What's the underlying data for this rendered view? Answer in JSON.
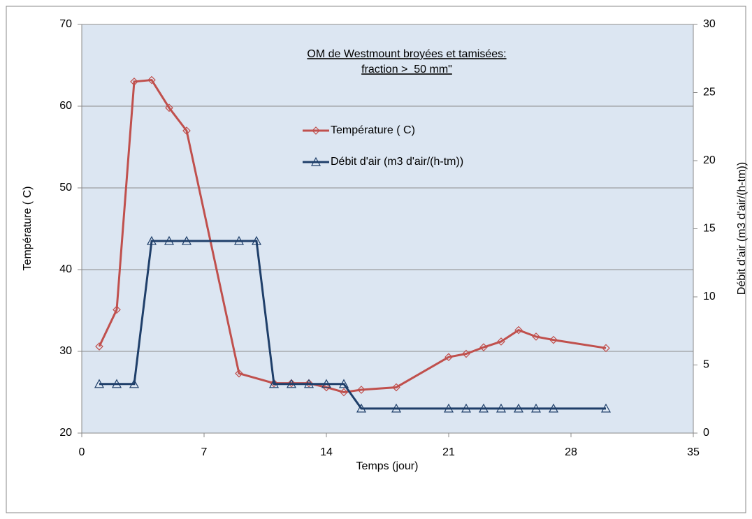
{
  "chart_data": {
    "type": "line",
    "title": "OM de Westmount broyées et tamisées:",
    "subtitle": "fraction >  50 mm\"",
    "x_label": "Temps (jour)",
    "y_label": "Température ( C)",
    "y2_label": "Débit d'air (m3 d'air/(h-tm))",
    "xlim": [
      0,
      35
    ],
    "xticks": [
      0,
      7,
      14,
      21,
      28,
      35
    ],
    "ylim": [
      20,
      70
    ],
    "yticks": [
      20,
      30,
      40,
      50,
      60,
      70
    ],
    "y2lim": [
      0,
      30
    ],
    "y2ticks": [
      0,
      5,
      10,
      15,
      20,
      25,
      30
    ],
    "grid": true,
    "series": [
      {
        "name": "Température ( C)",
        "color": "#c0504d",
        "marker": "diamond",
        "x": [
          1,
          2,
          3,
          4,
          5,
          6,
          9,
          11,
          12,
          13,
          14,
          15,
          16,
          18,
          21,
          22,
          23,
          24,
          25,
          26,
          27,
          30
        ],
        "values": [
          30.6,
          35.1,
          63,
          63.2,
          59.8,
          57,
          27.3,
          26.1,
          26.1,
          26.1,
          25.6,
          25,
          25.3,
          25.6,
          29.3,
          29.7,
          30.5,
          31.2,
          32.6,
          31.8,
          31.4,
          30.4
        ]
      },
      {
        "name": "Débit d'air (m3 d'air/(h-tm))",
        "color": "#1f3f6a",
        "marker": "triangle",
        "axis": "y2",
        "x": [
          1,
          2,
          3,
          4,
          5,
          6,
          9,
          10,
          11,
          12,
          13,
          14,
          15,
          16,
          18,
          21,
          22,
          23,
          24,
          25,
          26,
          27,
          30
        ],
        "values": [
          3.6,
          3.6,
          3.6,
          14.1,
          14.1,
          14.1,
          14.1,
          14.1,
          3.6,
          3.6,
          3.6,
          3.6,
          3.6,
          1.8,
          1.8,
          1.8,
          1.8,
          1.8,
          1.8,
          1.8,
          1.8,
          1.8,
          1.8
        ]
      }
    ]
  }
}
